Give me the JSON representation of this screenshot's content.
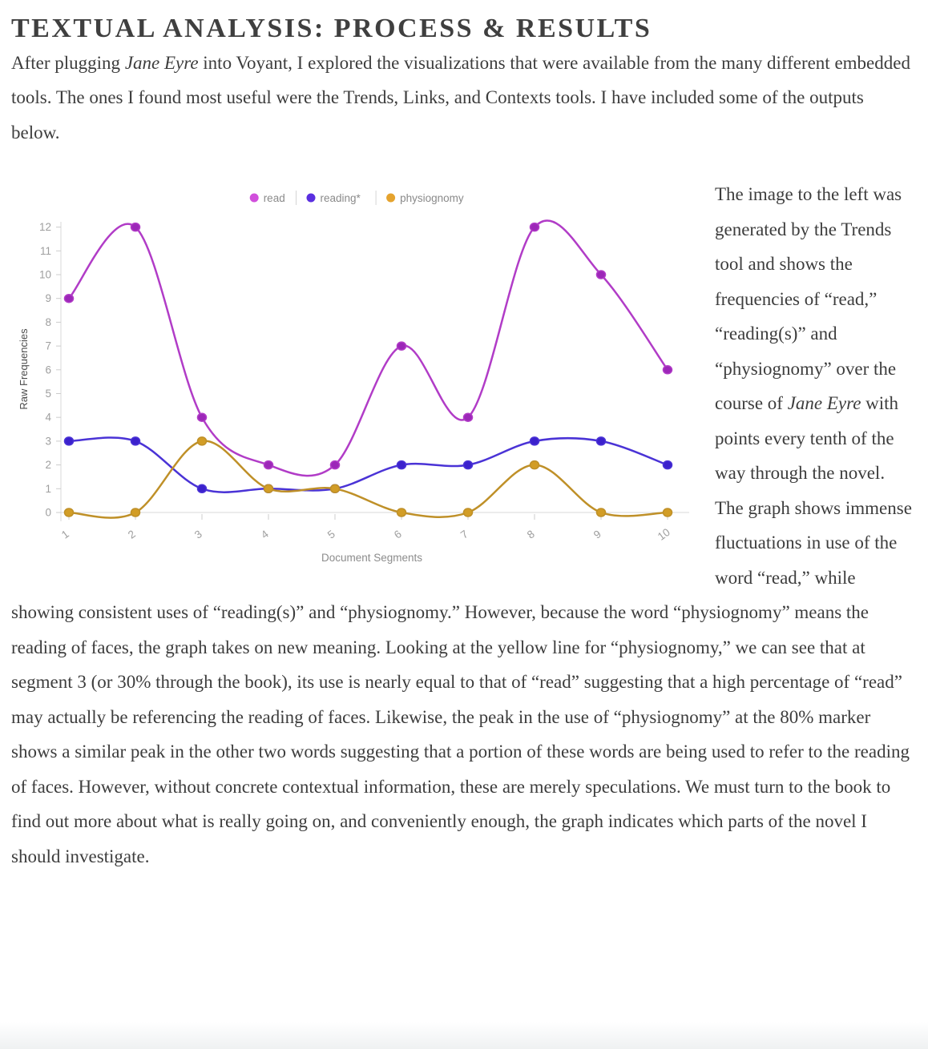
{
  "page": {
    "title": "TEXTUAL ANALYSIS: PROCESS & RESULTS",
    "text_color": "#3d3d3d",
    "title_color": "#3f3f3f"
  },
  "intro_paragraph": {
    "segments": [
      {
        "t": "After plugging "
      },
      {
        "t": "Jane Eyre",
        "i": true
      },
      {
        "t": " into Voyant, I explored the visualizations that were available from the many different embedded tools. The ones I found most useful were the Trends, Links, and Contexts tools. I have included some of the outputs below."
      }
    ]
  },
  "body_paragraph": {
    "segments": [
      {
        "t": "The image to the left was generated by the Trends tool and shows the frequencies of “read,” “reading(s)” and “physiognomy” over the course of "
      },
      {
        "t": "Jane Eyre",
        "i": true
      },
      {
        "t": " with points every tenth of the way through the novel. The graph shows immense fluctuations in use of the word “read,” while showing consistent uses of “reading(s)” and “physiognomy.” However, because  the word “physiognomy” means the reading of faces, the graph takes on new meaning. Looking at the yellow line for “physiognomy,” we can see that at segment 3 (or 30% through the book), its use is nearly equal to that of “read” suggesting that a high percentage of “read” may actually be referencing the reading of faces. Likewise, the peak in the use of “physiognomy” at the 80% marker shows a similar peak in the other two words suggesting that a portion of these words are being used to refer to the reading of faces. However, without concrete contextual information, these are merely speculations. We must turn to the book to find out more about what is really going on, and conveniently enough, the graph indicates which parts of the novel I should investigate."
      }
    ]
  },
  "chart_data": {
    "type": "line",
    "curve": "smooth-spline",
    "x": [
      1,
      2,
      3,
      4,
      5,
      6,
      7,
      8,
      9,
      10
    ],
    "series": [
      {
        "name": "read",
        "color": "#b13cc7",
        "point_color": "#9c27b8",
        "legend_color": "#d14fdc",
        "values": [
          9,
          12,
          4,
          2,
          2,
          7,
          4,
          12,
          10,
          6
        ]
      },
      {
        "name": "reading*",
        "color": "#4a33d6",
        "point_color": "#3b21cc",
        "legend_color": "#5a2fe0",
        "values": [
          3,
          3,
          1,
          1,
          1,
          2,
          2,
          3,
          3,
          2
        ]
      },
      {
        "name": "physiognomy",
        "color": "#bf9028",
        "point_color": "#d29d26",
        "legend_color": "#e5a32e",
        "values": [
          0,
          0,
          3,
          1,
          1,
          0,
          0,
          2,
          0,
          0
        ]
      }
    ],
    "xlabel": "Document Segments",
    "ylabel": "Raw Frequencies",
    "ylim": [
      0,
      12
    ],
    "yticks": [
      0,
      1,
      2,
      3,
      4,
      5,
      6,
      7,
      8,
      9,
      10,
      11,
      12
    ],
    "grid": false,
    "legend_position": "top-center",
    "colors": {
      "axis_line": "#d8d8d8",
      "tick_mark": "#cccccc",
      "tick_label": "#9e9e9e",
      "ylabel_color": "#4c4c4c",
      "xlabel_color": "#8c8c8c",
      "legend_text": "#8a8a8a",
      "legend_separator": "#d5d5d5"
    }
  }
}
